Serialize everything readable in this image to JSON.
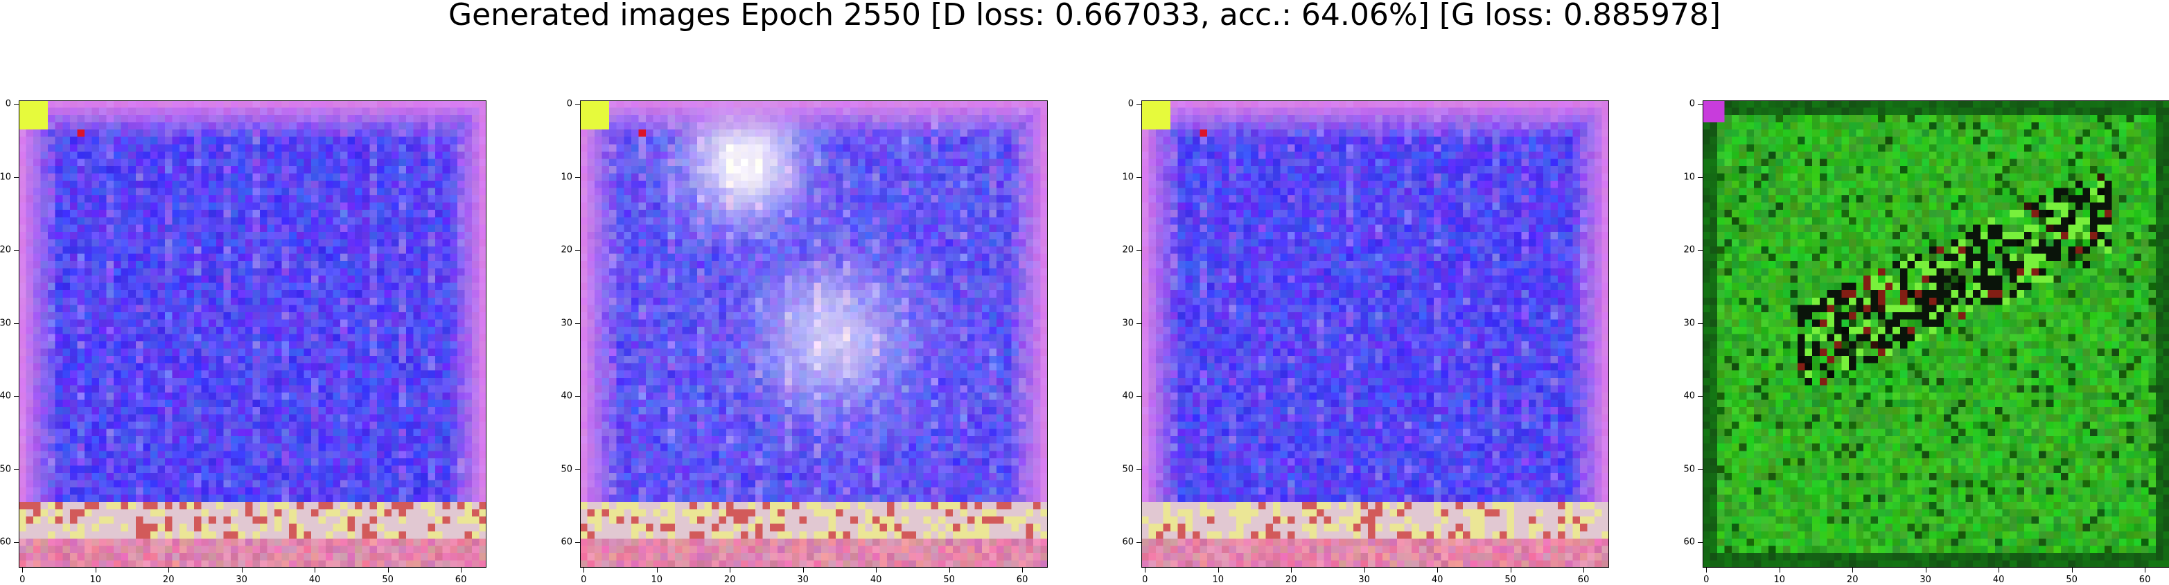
{
  "figure": {
    "title": "Generated images Epoch 2550 [D loss: 0.667033, acc.: 64.06%] [G loss: 0.885978]"
  },
  "panels": [
    {
      "name": "generated-image-1",
      "palette": "blue-purple",
      "x_ticks": [
        "0",
        "10",
        "20",
        "30",
        "40",
        "50",
        "60"
      ],
      "y_ticks": [
        "0",
        "10",
        "20",
        "30",
        "40",
        "50",
        "60"
      ]
    },
    {
      "name": "generated-image-2",
      "palette": "blue-purple-light",
      "x_ticks": [
        "0",
        "10",
        "20",
        "30",
        "40",
        "50",
        "60"
      ],
      "y_ticks": [
        "0",
        "10",
        "20",
        "30",
        "40",
        "50",
        "60"
      ]
    },
    {
      "name": "generated-image-3",
      "palette": "blue-purple",
      "x_ticks": [
        "0",
        "10",
        "20",
        "30",
        "40",
        "50",
        "60"
      ],
      "y_ticks": [
        "0",
        "10",
        "20",
        "30",
        "40",
        "50",
        "60"
      ]
    },
    {
      "name": "generated-image-4",
      "palette": "green",
      "x_ticks": [
        "0",
        "10",
        "20",
        "30",
        "40",
        "50",
        "60"
      ],
      "y_ticks": [
        "0",
        "10",
        "20",
        "30",
        "40",
        "50",
        "60"
      ]
    }
  ],
  "image_extent": [
    64,
    64
  ],
  "colors": {
    "blue_core": "#2a1cf0",
    "magenta_edge": "#d68ce6",
    "white_glow": "#f2ecff",
    "green_core": "#2aa62a",
    "dark_green": "#0d3a0d"
  }
}
